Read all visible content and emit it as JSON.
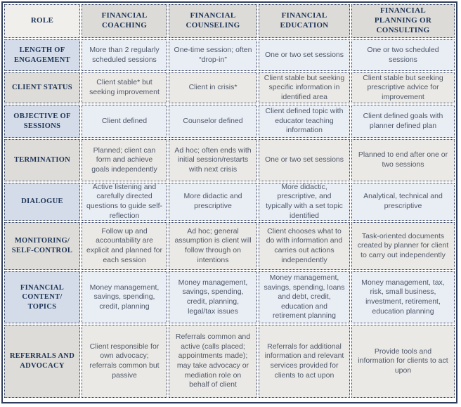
{
  "colors": {
    "frame_border": "#2e3d5e",
    "header_text": "#1d3357",
    "body_text": "#4e586a",
    "header_bg": "#dcdbd7",
    "role_bg": "#f0efec",
    "label_blue_bg": "#d3dce8",
    "label_gray_bg": "#dddcd8",
    "data_blue_bg": "#e9edf4",
    "data_gray_bg": "#ebe9e5"
  },
  "table": {
    "columns": [
      "ROLE",
      "FINANCIAL COACHING",
      "FINANCIAL COUNSELING",
      "FINANCIAL EDUCATION",
      "FINANCIAL PLANNING OR CONSULTING"
    ],
    "rows": [
      {
        "label": "LENGTH OF ENGAGEMENT",
        "cells": [
          "More than 2 regularly scheduled sessions",
          "One-time session; often “drop-in”",
          "One or two set sessions",
          "One or two scheduled sessions"
        ]
      },
      {
        "label": "CLIENT STATUS",
        "cells": [
          "Client stable* but seeking improvement",
          "Client in crisis*",
          "Client stable but seeking specific information in identified area",
          "Client stable but seeking prescriptive advice for improvement"
        ]
      },
      {
        "label": "OBJECTIVE OF SESSIONS",
        "cells": [
          "Client defined",
          "Counselor defined",
          "Client defined topic with educator teaching information",
          "Client defined goals with planner defined plan"
        ]
      },
      {
        "label": "TERMINATION",
        "cells": [
          "Planned; client can form and achieve goals independently",
          "Ad hoc; often ends with initial session/restarts with next crisis",
          "One or two set sessions",
          "Planned to end after one or two sessions"
        ]
      },
      {
        "label": "DIALOGUE",
        "cells": [
          "Active listening and carefully directed questions to guide self-reflection",
          "More didactic and prescriptive",
          "More didactic, prescriptive, and typically with a set topic identified",
          "Analytical, technical and prescriptive"
        ]
      },
      {
        "label": "MONITORING/ SELF-CONTROL",
        "cells": [
          "Follow up and accountability are explicit and planned for each session",
          "Ad hoc; general assumption is client will follow through on intentions",
          "Client chooses what to do with information and carries out actions independently",
          "Task-oriented documents created by planner for client to carry out independently"
        ]
      },
      {
        "label": "FINANCIAL CONTENT/ TOPICS",
        "cells": [
          "Money management, savings, spending, credit, planning",
          "Money management, savings, spending, credit, planning, legal/tax issues",
          "Money management, savings, spending, loans and debt, credit, education and retirement planning",
          "Money management, tax, risk, small business, investment, retirement, education planning"
        ]
      },
      {
        "label": "REFERRALS AND ADVOCACY",
        "cells": [
          "Client responsible for own advocacy; referrals common but passive",
          "Referrals common and active (calls placed; appointments made); may take advocacy or mediation role on behalf of client",
          "Referrals for additional information and relevant services provided for clients to act upon",
          "Provide tools and information for clients to act upon"
        ]
      }
    ]
  }
}
